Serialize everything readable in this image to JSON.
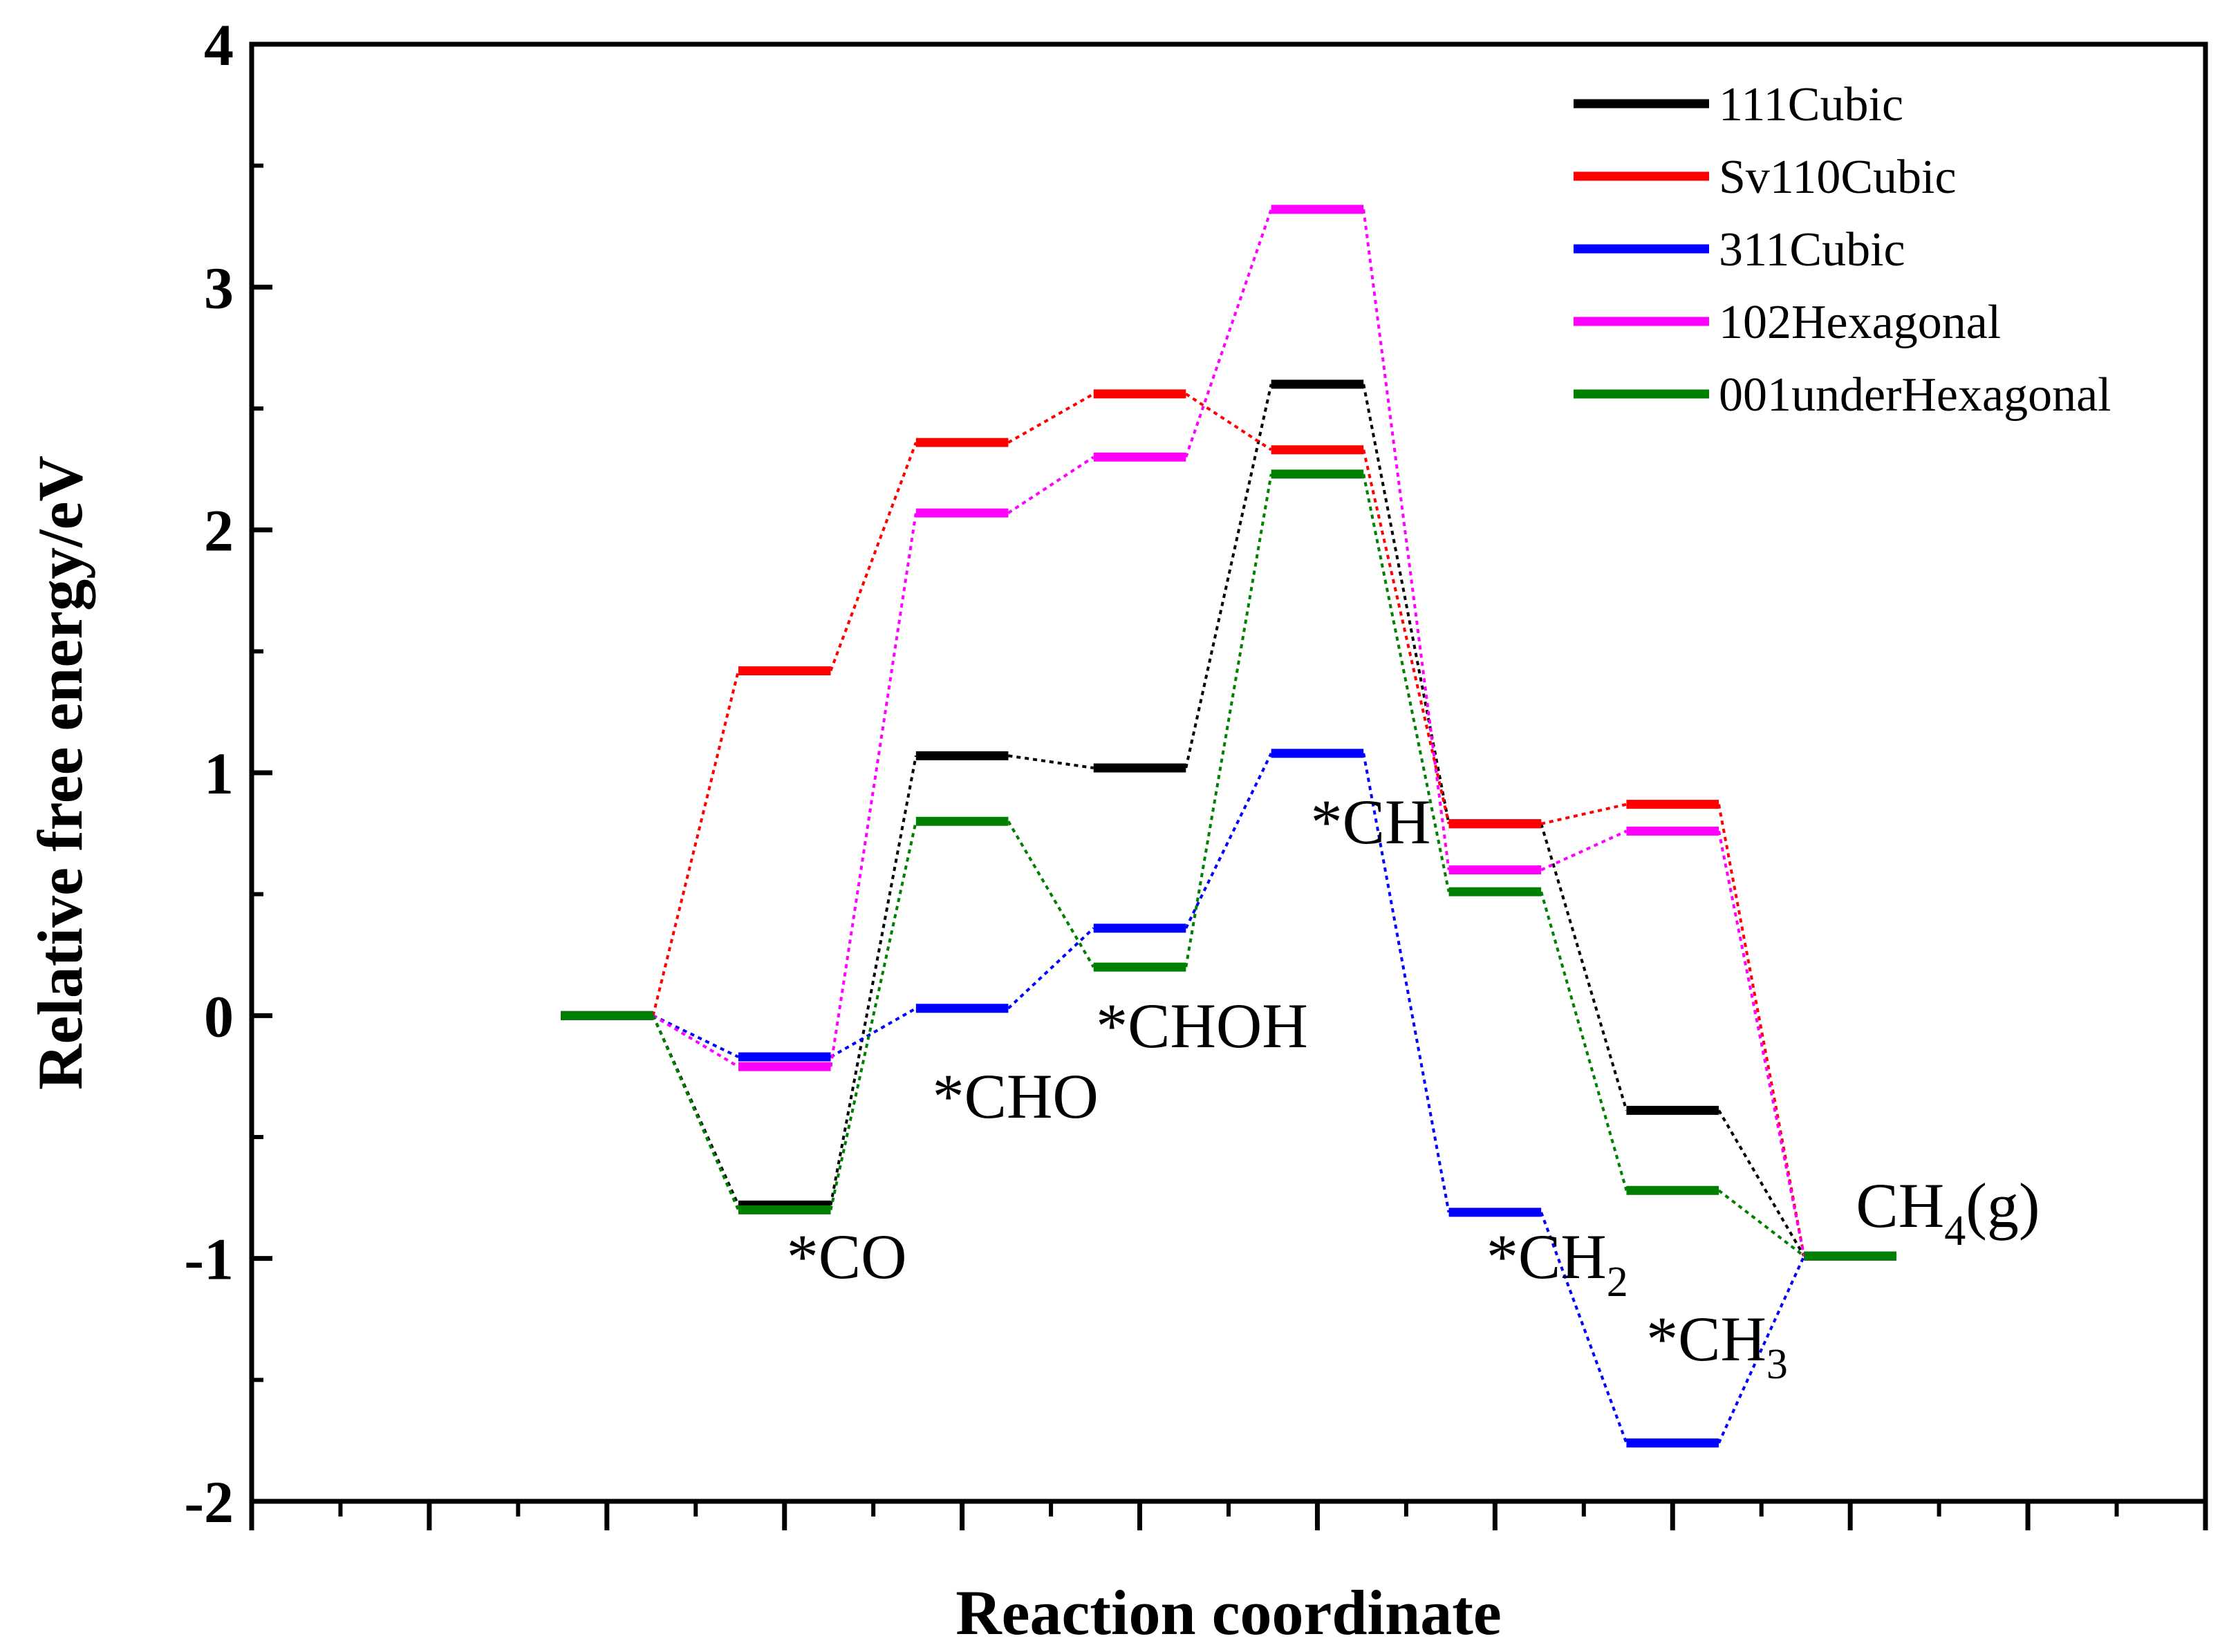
{
  "chart_data": {
    "type": "line",
    "title": "",
    "xlabel": "Reaction coordinate",
    "ylabel": "Relative free energy/eV",
    "ylim": [
      -2,
      4
    ],
    "yticks": [
      -2,
      -1,
      0,
      1,
      2,
      3,
      4
    ],
    "ytick_labels": [
      "-2",
      "-1",
      "0",
      "1",
      "2",
      "3",
      "4"
    ],
    "xlim": [
      -2,
      9
    ],
    "x_major_ticks": [
      -2,
      -1,
      0,
      1,
      2,
      3,
      4,
      5,
      6,
      7,
      8,
      9
    ],
    "legend_position": "top-right",
    "levels": [
      {
        "name": "start",
        "label": "",
        "label_sub": "",
        "label_tail": "",
        "label_x": 0
      },
      {
        "name": "co",
        "label": "*CO",
        "label_sub": "",
        "label_tail": "",
        "label_x": 1.35,
        "label_y": -1.08
      },
      {
        "name": "cho",
        "label": "*CHO",
        "label_sub": "",
        "label_tail": "",
        "label_x": 2.3,
        "label_y": -0.42
      },
      {
        "name": "choh",
        "label": "*CHOH",
        "label_sub": "",
        "label_tail": "",
        "label_x": 3.35,
        "label_y": -0.13
      },
      {
        "name": "ch",
        "label": "*CH",
        "label_sub": "",
        "label_tail": "",
        "label_x": 4.3,
        "label_y": 0.71
      },
      {
        "name": "ch2",
        "label": "*CH",
        "label_sub": "2",
        "label_tail": "",
        "label_x": 5.35,
        "label_y": -1.08
      },
      {
        "name": "ch3",
        "label": "*CH",
        "label_sub": "3",
        "label_tail": "",
        "label_x": 6.25,
        "label_y": -1.42
      },
      {
        "name": "ch4",
        "label": "CH",
        "label_sub": "4",
        "label_tail": "(g)",
        "label_x": 7.55,
        "label_y": -0.87
      }
    ],
    "series": [
      {
        "name": "111Cubic",
        "color": "#000000",
        "values": [
          0,
          -0.78,
          1.07,
          1.02,
          2.6,
          0.79,
          -0.39,
          -0.99
        ]
      },
      {
        "name": "Sv110Cubic",
        "color": "#ff0000",
        "values": [
          0,
          1.42,
          2.36,
          2.56,
          2.33,
          0.79,
          0.87,
          -0.99
        ]
      },
      {
        "name": "311Cubic",
        "color": "#0000ff",
        "values": [
          0,
          -0.17,
          0.03,
          0.36,
          1.08,
          -0.81,
          -1.76,
          -0.99
        ]
      },
      {
        "name": "102Hexagonal",
        "color": "#ff00ff",
        "values": [
          0,
          -0.21,
          2.07,
          2.3,
          3.32,
          0.6,
          0.76,
          -0.99
        ]
      },
      {
        "name": "001underHexagonal",
        "color": "#008000",
        "values": [
          0,
          -0.8,
          0.8,
          0.2,
          2.23,
          0.51,
          -0.72,
          -0.99
        ]
      }
    ]
  }
}
